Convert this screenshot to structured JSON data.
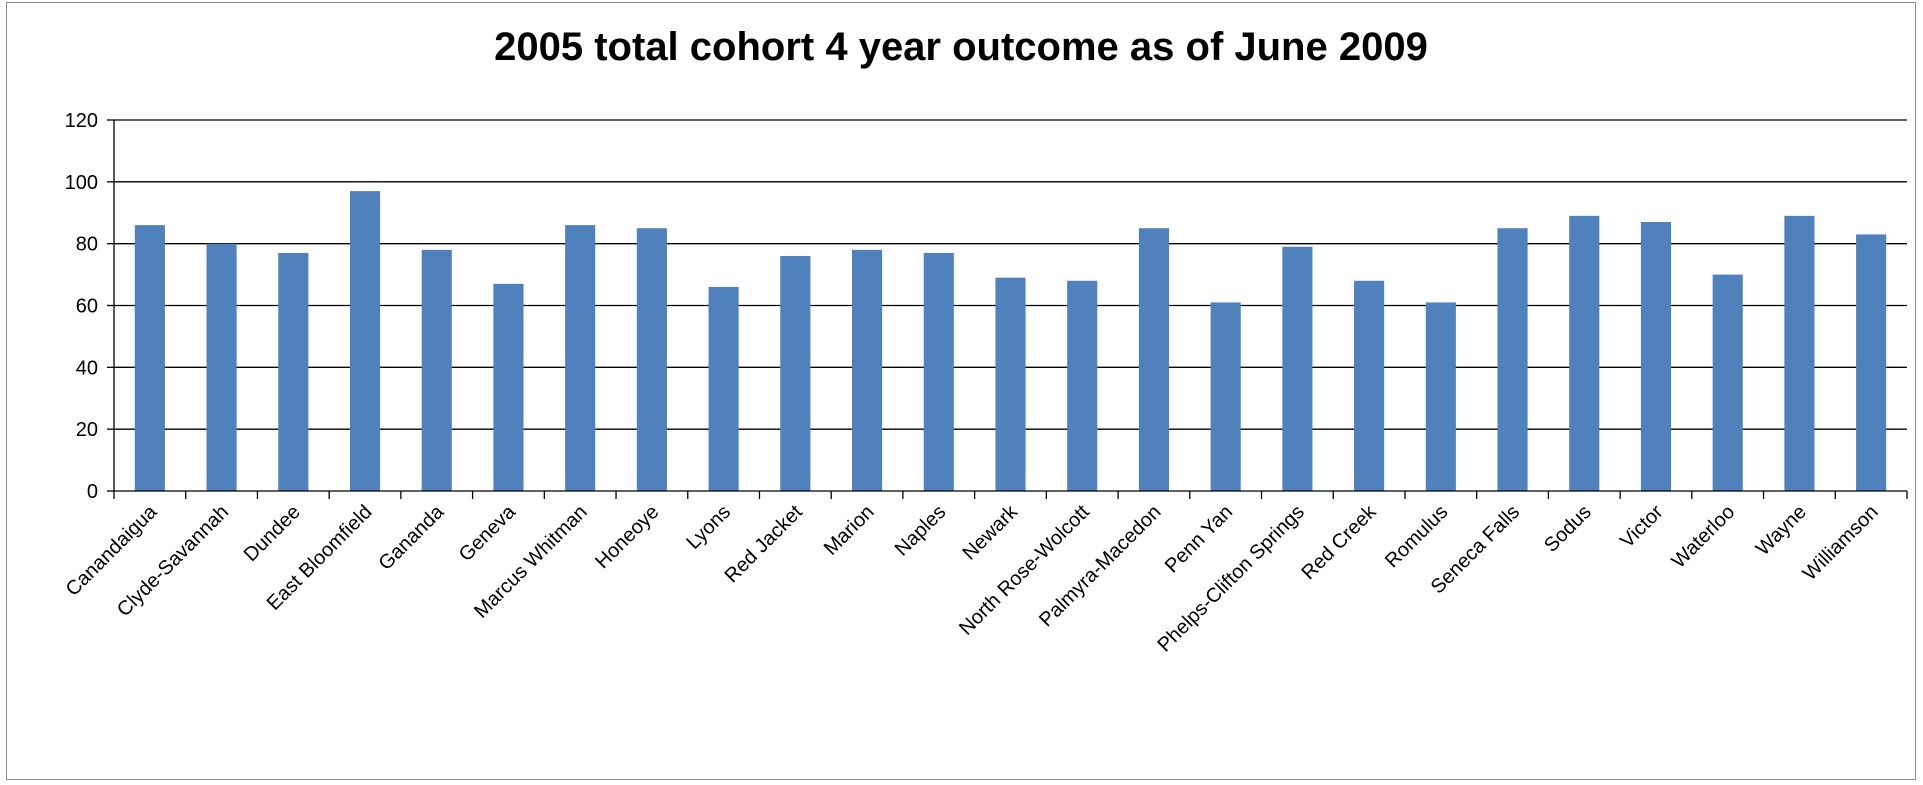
{
  "chart_data": {
    "type": "bar",
    "title": "2005 total cohort 4 year outcome as of June 2009",
    "xlabel": "",
    "ylabel": "",
    "ylim": [
      0,
      120
    ],
    "yticks": [
      0,
      20,
      40,
      60,
      80,
      100,
      120
    ],
    "grid": true,
    "legend": "none",
    "bar_color": "#4f81bd",
    "categories": [
      "Canandaigua",
      "Clyde-Savannah",
      "Dundee",
      "East Bloomfield",
      "Gananda",
      "Geneva",
      "Marcus Whitman",
      "Honeoye",
      "Lyons",
      "Red Jacket",
      "Marion",
      "Naples",
      "Newark",
      "North Rose-Wolcott",
      "Palmyra-Macedon",
      "Penn Yan",
      "Phelps-Clifton Springs",
      "Red Creek",
      "Romulus",
      "Seneca Falls",
      "Sodus",
      "Victor",
      "Waterloo",
      "Wayne",
      "Williamson"
    ],
    "values": [
      86,
      80,
      77,
      97,
      78,
      67,
      86,
      85,
      66,
      76,
      78,
      77,
      69,
      68,
      85,
      61,
      79,
      68,
      61,
      85,
      89,
      87,
      70,
      89,
      83
    ]
  }
}
